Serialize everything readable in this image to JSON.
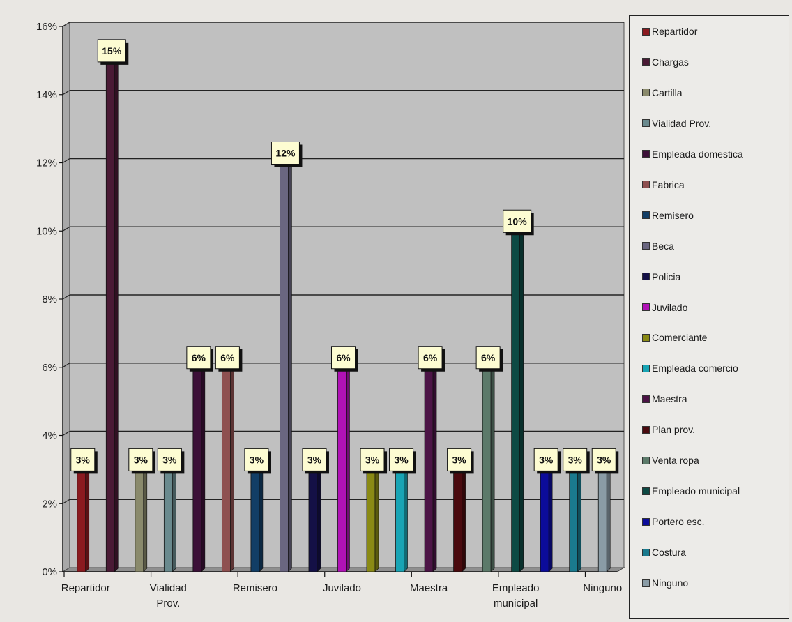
{
  "chart_data": {
    "type": "bar",
    "categories": [
      "Repartidor",
      "Chargas",
      "Cartilla",
      "Vialidad Prov.",
      "Empleada domestica",
      "Fabrica",
      "Remisero",
      "Beca",
      "Policia",
      "Juvilado",
      "Comerciante",
      "Empleada comercio",
      "Maestra",
      "Plan prov.",
      "Venta ropa",
      "Empleado municipal",
      "Portero esc.",
      "Costura",
      "Ninguno"
    ],
    "values": [
      3,
      15,
      3,
      3,
      6,
      6,
      3,
      12,
      3,
      6,
      3,
      3,
      6,
      3,
      6,
      10,
      3,
      3,
      3
    ],
    "data_labels": [
      "3%",
      "15%",
      "3%",
      "3%",
      "6%",
      "6%",
      "3%",
      "12%",
      "3%",
      "6%",
      "3%",
      "3%",
      "6%",
      "3%",
      "6%",
      "10%",
      "3%",
      "3%",
      "3%"
    ],
    "colors": [
      "#8b1a1f",
      "#4a1a35",
      "#8a8a6c",
      "#6a8a8e",
      "#3c1038",
      "#8e5050",
      "#123e66",
      "#6a6680",
      "#141046",
      "#b012b6",
      "#8a8a14",
      "#18a4b4",
      "#4c1446",
      "#4a0a0e",
      "#5c7a6a",
      "#0e4a44",
      "#0c0c9a",
      "#1a7a8e",
      "#8a9ca6"
    ],
    "x_tick_labels": [
      {
        "index": 0,
        "lines": [
          "Repartidor"
        ]
      },
      {
        "index": 3,
        "lines": [
          "Vialidad",
          "Prov."
        ]
      },
      {
        "index": 6,
        "lines": [
          "Remisero"
        ]
      },
      {
        "index": 9,
        "lines": [
          "Juvilado"
        ]
      },
      {
        "index": 12,
        "lines": [
          "Maestra"
        ]
      },
      {
        "index": 15,
        "lines": [
          "Empleado",
          "municipal"
        ]
      },
      {
        "index": 18,
        "lines": [
          "Ninguno"
        ]
      }
    ],
    "y_ticks": [
      "0%",
      "2%",
      "4%",
      "6%",
      "8%",
      "10%",
      "12%",
      "14%",
      "16%"
    ],
    "ylim": [
      0,
      16
    ],
    "grid": true,
    "legend_position": "right",
    "legend": [
      "Repartidor",
      "Chargas",
      "Cartilla",
      "Vialidad Prov.",
      "Empleada domestica",
      "Fabrica",
      "Remisero",
      "Beca",
      "Policia",
      "Juvilado",
      "Comerciante",
      "Empleada comercio",
      "Maestra",
      "Plan prov.",
      "Venta ropa",
      "Empleado municipal",
      "Portero esc.",
      "Costura",
      "Ninguno"
    ]
  }
}
